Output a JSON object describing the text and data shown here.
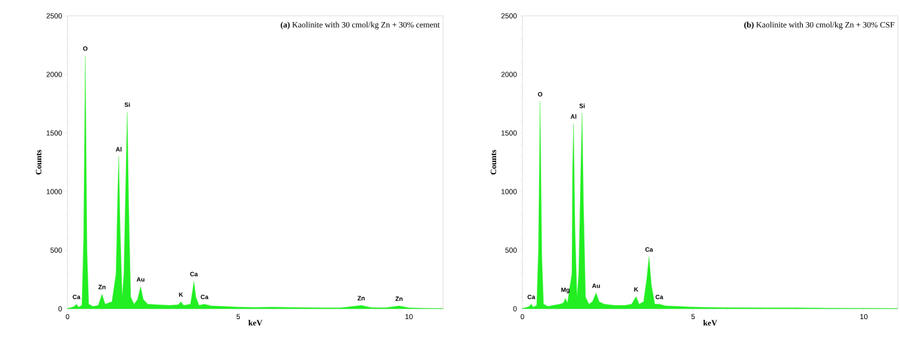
{
  "chart_data": [
    {
      "type": "area",
      "title": "**(a)** Kaolinite with 30 cmol/kg Zn + 30% cement",
      "xlabel": "keV",
      "ylabel": "Counts",
      "xlim": [
        0,
        11
      ],
      "ylim": [
        0,
        2500
      ],
      "xticks": [
        0,
        5,
        10
      ],
      "yticks": [
        0,
        500,
        1000,
        1500,
        2000,
        2500
      ],
      "grid": false,
      "series": [
        {
          "color": "#22ee22",
          "x": [
            0,
            0.1,
            0.2,
            0.26,
            0.32,
            0.42,
            0.47,
            0.52,
            0.57,
            0.62,
            0.75,
            0.9,
            1.01,
            1.1,
            1.3,
            1.42,
            1.47,
            1.5,
            1.54,
            1.6,
            1.65,
            1.72,
            1.75,
            1.79,
            1.85,
            1.95,
            2.05,
            2.14,
            2.22,
            2.35,
            2.6,
            3.0,
            3.25,
            3.32,
            3.4,
            3.6,
            3.66,
            3.7,
            3.76,
            3.85,
            4.01,
            4.2,
            4.6,
            5.0,
            5.5,
            6.0,
            6.5,
            7.0,
            7.5,
            8.0,
            8.6,
            8.9,
            9.3,
            9.71,
            10.0,
            10.5,
            11.0
          ],
          "values": [
            5,
            10,
            20,
            40,
            15,
            30,
            600,
            2160,
            500,
            40,
            20,
            30,
            125,
            40,
            60,
            300,
            1000,
            1300,
            700,
            100,
            300,
            1300,
            1680,
            900,
            100,
            40,
            80,
            190,
            80,
            40,
            35,
            30,
            35,
            60,
            30,
            40,
            150,
            235,
            100,
            30,
            40,
            25,
            20,
            15,
            12,
            15,
            12,
            10,
            8,
            8,
            30,
            10,
            8,
            25,
            8,
            5,
            3
          ]
        }
      ],
      "annotations": [
        {
          "text": "Ca",
          "x": 0.26,
          "y": 40
        },
        {
          "text": "O",
          "x": 0.52,
          "y": 2160
        },
        {
          "text": "Zn",
          "x": 1.01,
          "y": 125
        },
        {
          "text": "Al",
          "x": 1.5,
          "y": 1300
        },
        {
          "text": "Si",
          "x": 1.75,
          "y": 1680
        },
        {
          "text": "Au",
          "x": 2.14,
          "y": 190
        },
        {
          "text": "K",
          "x": 3.32,
          "y": 60
        },
        {
          "text": "Ca",
          "x": 3.7,
          "y": 235
        },
        {
          "text": "Ca",
          "x": 4.01,
          "y": 40
        },
        {
          "text": "Zn",
          "x": 8.6,
          "y": 30
        },
        {
          "text": "Zn",
          "x": 9.71,
          "y": 25
        }
      ]
    },
    {
      "type": "area",
      "title": "**(b)** Kaolinite with 30 cmol/kg Zn + 30% CSF",
      "xlabel": "keV",
      "ylabel": "Counts",
      "xlim": [
        0,
        11
      ],
      "ylim": [
        0,
        2500
      ],
      "xticks": [
        0,
        5,
        10
      ],
      "yticks": [
        0,
        500,
        1000,
        1500,
        2000,
        2500
      ],
      "grid": false,
      "series": [
        {
          "color": "#22ee22",
          "x": [
            0,
            0.1,
            0.2,
            0.26,
            0.32,
            0.42,
            0.47,
            0.52,
            0.57,
            0.62,
            0.75,
            0.9,
            1.1,
            1.2,
            1.26,
            1.32,
            1.45,
            1.47,
            1.5,
            1.54,
            1.6,
            1.65,
            1.72,
            1.75,
            1.79,
            1.85,
            1.95,
            2.05,
            2.16,
            2.25,
            2.4,
            2.7,
            3.0,
            3.2,
            3.33,
            3.42,
            3.55,
            3.64,
            3.71,
            3.78,
            3.88,
            4.01,
            4.2,
            4.6,
            5.0,
            5.5,
            6.0,
            7.0,
            8.0,
            9.0,
            10.0,
            11.0
          ],
          "values": [
            5,
            10,
            20,
            40,
            15,
            30,
            500,
            1770,
            450,
            40,
            20,
            30,
            40,
            50,
            90,
            50,
            300,
            1200,
            1580,
            700,
            100,
            300,
            1300,
            1670,
            900,
            100,
            40,
            60,
            135,
            60,
            40,
            30,
            30,
            40,
            105,
            40,
            60,
            250,
            445,
            200,
            40,
            40,
            25,
            20,
            15,
            12,
            10,
            8,
            8,
            6,
            5,
            3
          ]
        }
      ],
      "annotations": [
        {
          "text": "Ca",
          "x": 0.26,
          "y": 40
        },
        {
          "text": "O",
          "x": 0.52,
          "y": 1770
        },
        {
          "text": "Mg",
          "x": 1.26,
          "y": 90
        },
        {
          "text": "Al",
          "x": 1.5,
          "y": 1580
        },
        {
          "text": "Si",
          "x": 1.75,
          "y": 1670
        },
        {
          "text": "Au",
          "x": 2.16,
          "y": 135
        },
        {
          "text": "K",
          "x": 3.33,
          "y": 105
        },
        {
          "text": "Ca",
          "x": 3.71,
          "y": 445
        },
        {
          "text": "Ca",
          "x": 4.01,
          "y": 40
        }
      ]
    }
  ]
}
